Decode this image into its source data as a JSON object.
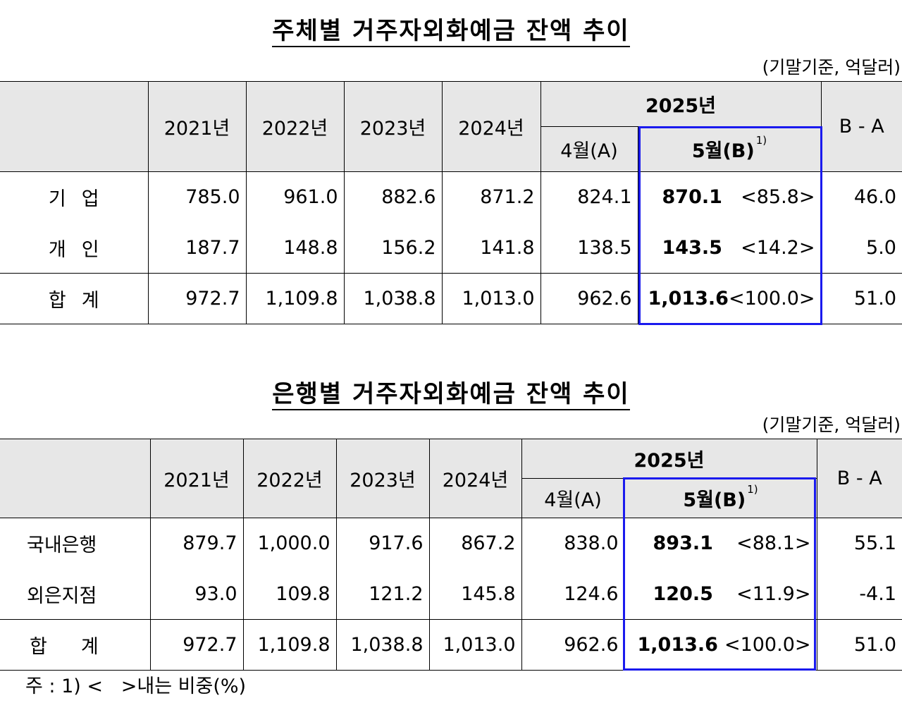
{
  "table1": {
    "title": "주체별 거주자외화예금 잔액 추이",
    "unit": "(기말기준, 억달러)",
    "headers": {
      "years": [
        "2021년",
        "2022년",
        "2023년",
        "2024년"
      ],
      "group": "2025년",
      "april": "4월(A)",
      "may": "5월(B)",
      "may_note": "1)",
      "diff": "B - A"
    },
    "rows": [
      {
        "label": "기업",
        "values": [
          "785.0",
          "961.0",
          "882.6",
          "871.2",
          "824.1"
        ],
        "may": "870.1",
        "share": "<85.8>",
        "diff": "46.0"
      },
      {
        "label": "개인",
        "values": [
          "187.7",
          "148.8",
          "156.2",
          "141.8",
          "138.5"
        ],
        "may": "143.5",
        "share": "<14.2>",
        "diff": "5.0"
      },
      {
        "label": "합계",
        "values": [
          "972.7",
          "1,109.8",
          "1,038.8",
          "1,013.0",
          "962.6"
        ],
        "may": "1,013.6",
        "share": "<100.0>",
        "diff": "51.0"
      }
    ]
  },
  "table2": {
    "title": "은행별 거주자외화예금 잔액 추이",
    "unit": "(기말기준, 억달러)",
    "headers": {
      "years": [
        "2021년",
        "2022년",
        "2023년",
        "2024년"
      ],
      "group": "2025년",
      "april": "4월(A)",
      "may": "5월(B)",
      "may_note": "1)",
      "diff": "B - A"
    },
    "rows": [
      {
        "label": "국내은행",
        "values": [
          "879.7",
          "1,000.0",
          "917.6",
          "867.2",
          "838.0"
        ],
        "may": "893.1",
        "share": "<88.1>",
        "diff": "55.1"
      },
      {
        "label": "외은지점",
        "values": [
          "93.0",
          "109.8",
          "121.2",
          "145.8",
          "124.6"
        ],
        "may": "120.5",
        "share": "<11.9>",
        "diff": "-4.1"
      },
      {
        "label": "합계",
        "values": [
          "972.7",
          "1,109.8",
          "1,038.8",
          "1,013.0",
          "962.6"
        ],
        "may": "1,013.6",
        "share": "<100.0>",
        "diff": "51.0"
      }
    ]
  },
  "footnote": "주 : 1) <   >내는 비중(%)",
  "colors": {
    "header_bg": "#e7e7e7",
    "highlight_border": "#1a1aee"
  }
}
